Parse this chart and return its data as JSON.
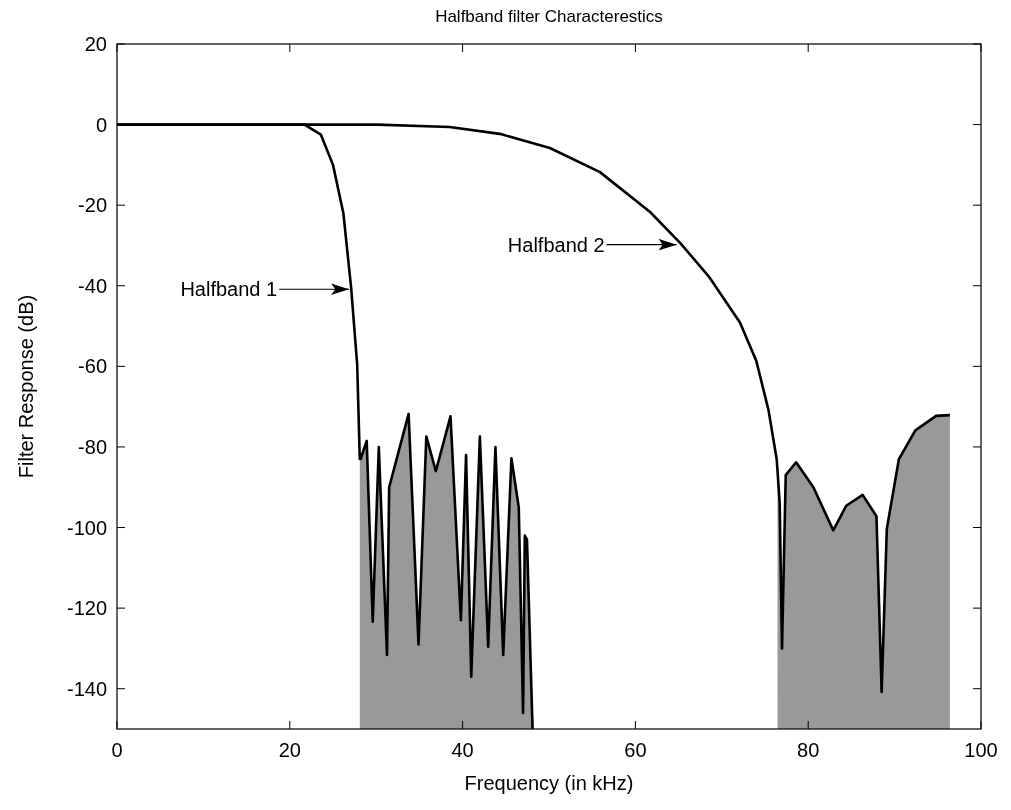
{
  "chart_data": {
    "type": "line",
    "title": "Halfband filter Characterestics",
    "xlabel": "Frequency (in kHz)",
    "ylabel": "Filter Response (dB)",
    "xlim": [
      0,
      100
    ],
    "xticks": [
      0,
      20,
      40,
      60,
      80,
      100
    ],
    "ylim": [
      -150,
      20
    ],
    "yticks": [
      20,
      0,
      -20,
      -40,
      -60,
      -80,
      -100,
      -120,
      -140
    ],
    "grid": false,
    "line_style": "solid",
    "series": [
      {
        "color": "#000000",
        "x": [
          0,
          21.7,
          23.6,
          25.0,
          26.2,
          27.1,
          27.8,
          28.1,
          28.2,
          28.9,
          29.6,
          30.3,
          31.25,
          31.5,
          33.75,
          34.9,
          35.8,
          36.9,
          38.6,
          39.8,
          40.4,
          41.0,
          42.0,
          42.96,
          43.8,
          44.7,
          45.65,
          46.5,
          47.0,
          47.2,
          47.45,
          48.1
        ],
        "values": [
          0,
          0,
          -2.5,
          -10,
          -22,
          -40.5,
          -59.6,
          -83,
          -83,
          -78.5,
          -123.4,
          -80,
          -131.6,
          -90,
          -71.8,
          -129,
          -77.4,
          -86,
          -72.4,
          -123,
          -82,
          -137,
          -77.4,
          -129.6,
          -80,
          -131.6,
          -82.8,
          -95,
          -146,
          -102,
          -103,
          -150
        ],
        "lower": [
          null,
          null,
          null,
          null,
          null,
          null,
          null,
          -150,
          -150,
          -150,
          -150,
          -150,
          -150,
          -150,
          -150,
          -150,
          -150,
          -150,
          -150,
          -150,
          -150,
          -150,
          -150,
          -150,
          -150,
          -150,
          -150,
          -150,
          -150,
          -150,
          -150,
          -150
        ],
        "upper": [
          null,
          null,
          null,
          null,
          null,
          null,
          null,
          -83,
          -83,
          -78.5,
          -123.4,
          -80,
          -131.6,
          -90,
          -71.8,
          -129,
          -77.4,
          -86,
          -72.4,
          -123,
          -82,
          -137,
          -77.4,
          -129.6,
          -80,
          -131.6,
          -82.8,
          -95,
          -146,
          -102,
          -103,
          -150
        ]
      },
      {
        "color": "#000000",
        "x": [
          0,
          30.1,
          38.5,
          44.3,
          50.1,
          55.9,
          61.7,
          65.2,
          68.6,
          72.1,
          74.0,
          75.4,
          76.35,
          76.45,
          76.7,
          76.97,
          77.4,
          78.6,
          80.6,
          82.9,
          84.4,
          86.3,
          87.9,
          88.5,
          89.1,
          90.5,
          92.4,
          94.8,
          96.4
        ],
        "values": [
          0,
          0,
          -0.6,
          -2.3,
          -5.8,
          -11.8,
          -21.7,
          -29.4,
          -38,
          -49.1,
          -58.7,
          -70.8,
          -83,
          -86,
          -94,
          -130,
          -87,
          -83.8,
          -90,
          -100.7,
          -94.6,
          -91.9,
          -97.2,
          -140.8,
          -100.3,
          -83,
          -75.9,
          -72.3,
          -72.1
        ],
        "lower": [
          null,
          null,
          null,
          null,
          null,
          null,
          null,
          null,
          null,
          null,
          null,
          null,
          null,
          -150,
          -150,
          -150,
          -150,
          -150,
          -150,
          -150,
          -150,
          -150,
          -150,
          -150,
          -150,
          -150,
          -150,
          -150,
          -150
        ],
        "upper": [
          null,
          null,
          null,
          null,
          null,
          null,
          null,
          null,
          null,
          null,
          null,
          null,
          null,
          -86,
          -94,
          -130,
          -87,
          -83.8,
          -90,
          -100.7,
          -94.6,
          -91.9,
          -97.2,
          -140.8,
          -100.3,
          -83,
          -75.9,
          -72.3,
          -72.1
        ]
      }
    ],
    "annotations": [
      "Halfband 1",
      "Halfband 2"
    ]
  }
}
